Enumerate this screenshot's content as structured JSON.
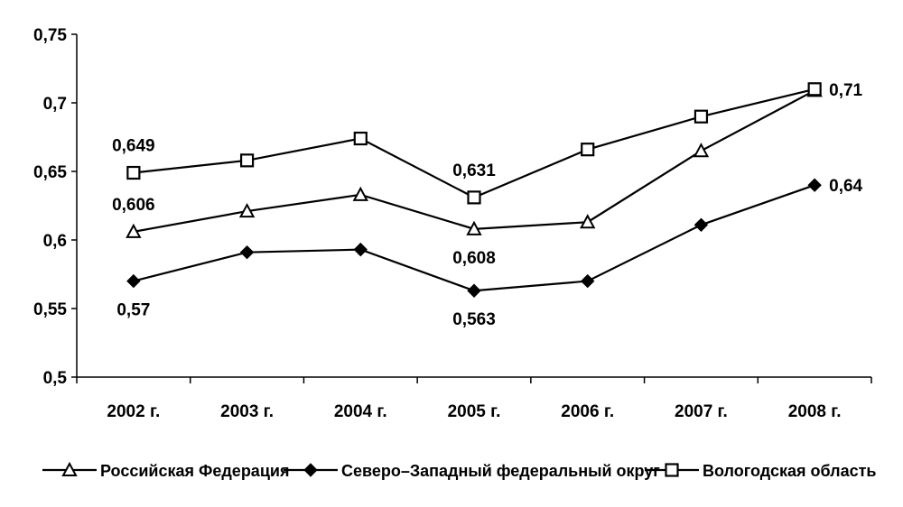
{
  "chart_data": {
    "type": "line",
    "categories": [
      "2002 г.",
      "2003 г.",
      "2004 г.",
      "2005 г.",
      "2006 г.",
      "2007 г.",
      "2008 г."
    ],
    "ylim": [
      0.5,
      0.75
    ],
    "yticks": [
      {
        "value": 0.5,
        "label": "0,5"
      },
      {
        "value": 0.55,
        "label": "0,55"
      },
      {
        "value": 0.6,
        "label": "0,6"
      },
      {
        "value": 0.65,
        "label": "0,65"
      },
      {
        "value": 0.7,
        "label": "0,7"
      },
      {
        "value": 0.75,
        "label": "0,75"
      }
    ],
    "grid": false,
    "legend_position": "bottom",
    "series": [
      {
        "name": "Российская Федерация",
        "marker": "triangle-open",
        "values": [
          0.606,
          0.621,
          0.633,
          0.608,
          0.613,
          0.665,
          0.709
        ],
        "labels": [
          {
            "index": 0,
            "text": "0,606",
            "placement": "above"
          },
          {
            "index": 3,
            "text": "0,608",
            "placement": "below"
          }
        ]
      },
      {
        "name": "Северо–Западный федеральный округ",
        "marker": "diamond-filled",
        "values": [
          0.57,
          0.591,
          0.593,
          0.563,
          0.57,
          0.611,
          0.64
        ],
        "labels": [
          {
            "index": 0,
            "text": "0,57",
            "placement": "below"
          },
          {
            "index": 3,
            "text": "0,563",
            "placement": "below"
          },
          {
            "index": 6,
            "text": "0,64",
            "placement": "right"
          }
        ]
      },
      {
        "name": "Вологодская область",
        "marker": "square-open",
        "values": [
          0.649,
          0.658,
          0.674,
          0.631,
          0.666,
          0.69,
          0.71
        ],
        "labels": [
          {
            "index": 0,
            "text": "0,649",
            "placement": "above"
          },
          {
            "index": 3,
            "text": "0,631",
            "placement": "above"
          },
          {
            "index": 6,
            "text": "0,71",
            "placement": "right"
          }
        ]
      }
    ]
  },
  "colors": {
    "line": "#000000",
    "background": "#ffffff"
  }
}
